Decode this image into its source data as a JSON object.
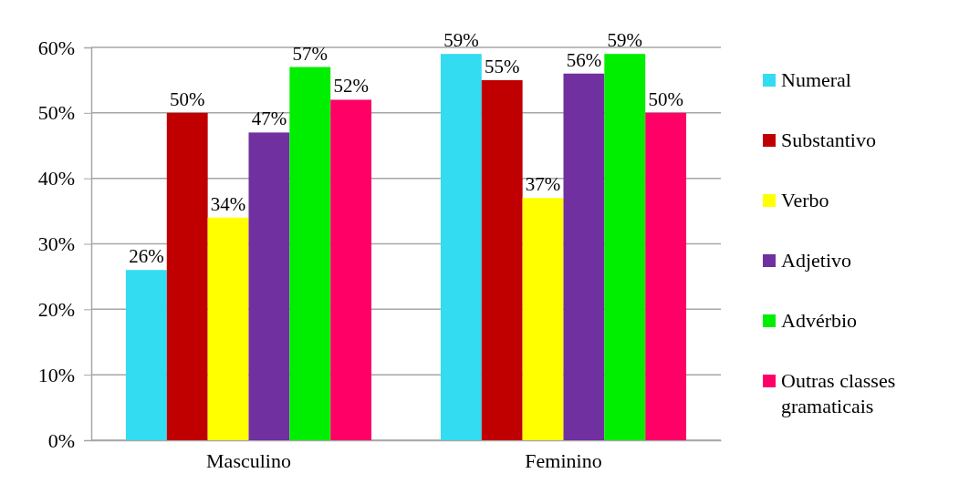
{
  "chart_data": {
    "type": "bar",
    "categories": [
      "Masculino",
      "Feminino"
    ],
    "series": [
      {
        "name": "Numeral",
        "color": "#33dcf0",
        "values": [
          26,
          59
        ],
        "value_labels": [
          "26%",
          "59%"
        ]
      },
      {
        "name": "Substantivo",
        "color": "#c00000",
        "values": [
          50,
          55
        ],
        "value_labels": [
          "50%",
          "55%"
        ]
      },
      {
        "name": "Verbo",
        "color": "#ffff00",
        "values": [
          34,
          37
        ],
        "value_labels": [
          "34%",
          "37%"
        ]
      },
      {
        "name": "Adjetivo",
        "color": "#7030a0",
        "values": [
          47,
          56
        ],
        "value_labels": [
          "47%",
          "56%"
        ]
      },
      {
        "name": "Advérbio",
        "color": "#00ee00",
        "values": [
          57,
          59
        ],
        "value_labels": [
          "57%",
          "59%"
        ]
      },
      {
        "name": "Outras classes gramaticais",
        "color": "#ff0066",
        "values": [
          52,
          50
        ],
        "value_labels": [
          "52%",
          "50%"
        ]
      }
    ],
    "ylim": [
      0,
      60
    ],
    "yticks": [
      {
        "value": 0,
        "label": "0%"
      },
      {
        "value": 10,
        "label": "10%"
      },
      {
        "value": 20,
        "label": "20%"
      },
      {
        "value": 30,
        "label": "30%"
      },
      {
        "value": 40,
        "label": "40%"
      },
      {
        "value": 50,
        "label": "50%"
      },
      {
        "value": 60,
        "label": "60%"
      }
    ],
    "grid": "y",
    "legend": "right"
  }
}
